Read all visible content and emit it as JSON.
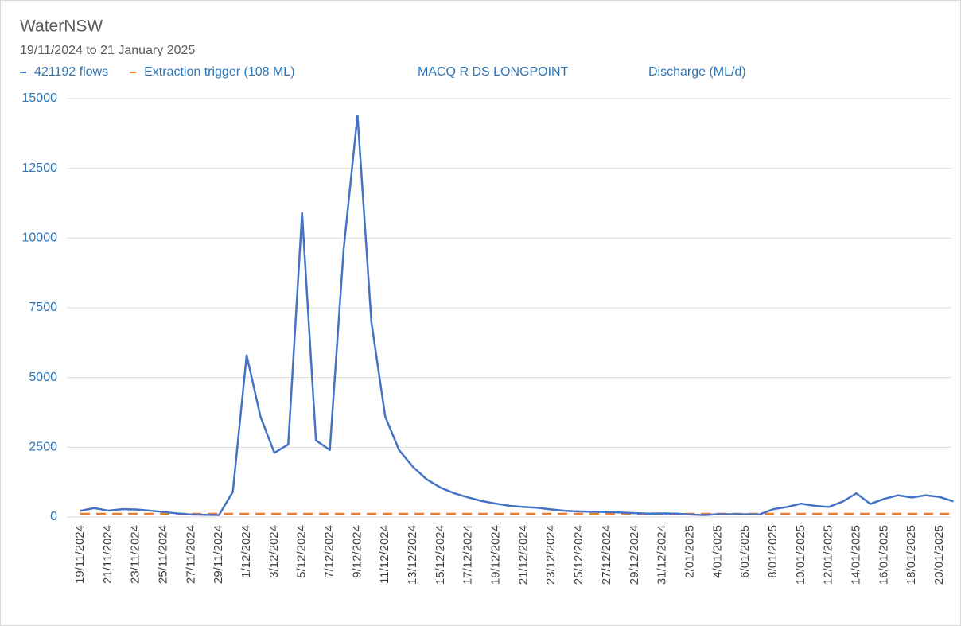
{
  "chart_data": {
    "type": "line",
    "title": "WaterNSW",
    "subtitle": "19/11/2024 to 21 January 2025",
    "annotations": [
      "MACQ R DS LONGPOINT",
      "Discharge (ML/d)"
    ],
    "categories": [
      "19/11/2024",
      null,
      "21/11/2024",
      null,
      "23/11/2024",
      null,
      "25/11/2024",
      null,
      "27/11/2024",
      null,
      "29/11/2024",
      null,
      "1/12/2024",
      null,
      "3/12/2024",
      null,
      "5/12/2024",
      null,
      "7/12/2024",
      null,
      "9/12/2024",
      null,
      "11/12/2024",
      null,
      "13/12/2024",
      null,
      "15/12/2024",
      null,
      "17/12/2024",
      null,
      "19/12/2024",
      null,
      "21/12/2024",
      null,
      "23/12/2024",
      null,
      "25/12/2024",
      null,
      "27/12/2024",
      null,
      "29/12/2024",
      null,
      "31/12/2024",
      null,
      "2/01/2025",
      null,
      "4/01/2025",
      null,
      "6/01/2025",
      null,
      "8/01/2025",
      null,
      "10/01/2025",
      null,
      "12/01/2025",
      null,
      "14/01/2025",
      null,
      "16/01/2025",
      null,
      "18/01/2025",
      null,
      "20/01/2025",
      null
    ],
    "series": [
      {
        "name": "421192 flows",
        "color": "#4472c4",
        "dashed": false,
        "values": [
          220,
          320,
          230,
          280,
          270,
          230,
          180,
          130,
          90,
          80,
          70,
          900,
          5800,
          3600,
          2300,
          2600,
          10900,
          2750,
          2400,
          9600,
          14400,
          7000,
          3600,
          2400,
          1800,
          1350,
          1050,
          850,
          700,
          570,
          480,
          400,
          360,
          330,
          270,
          220,
          200,
          190,
          180,
          160,
          140,
          120,
          130,
          120,
          90,
          70,
          100,
          100,
          100,
          90,
          280,
          360,
          480,
          400,
          360,
          550,
          850,
          470,
          650,
          780,
          700,
          780,
          720,
          560
        ]
      },
      {
        "name": "Extraction trigger (108 ML)",
        "color": "#ed7d31",
        "dashed": true,
        "values": [
          108,
          108,
          108,
          108,
          108,
          108,
          108,
          108,
          108,
          108,
          108,
          108,
          108,
          108,
          108,
          108,
          108,
          108,
          108,
          108,
          108,
          108,
          108,
          108,
          108,
          108,
          108,
          108,
          108,
          108,
          108,
          108,
          108,
          108,
          108,
          108,
          108,
          108,
          108,
          108,
          108,
          108,
          108,
          108,
          108,
          108,
          108,
          108,
          108,
          108,
          108,
          108,
          108,
          108,
          108,
          108,
          108,
          108,
          108,
          108,
          108,
          108,
          108,
          108
        ]
      }
    ],
    "ylim": [
      0,
      15000
    ],
    "yticks": [
      0,
      2500,
      5000,
      7500,
      10000,
      12500,
      15000
    ],
    "grid": true
  }
}
